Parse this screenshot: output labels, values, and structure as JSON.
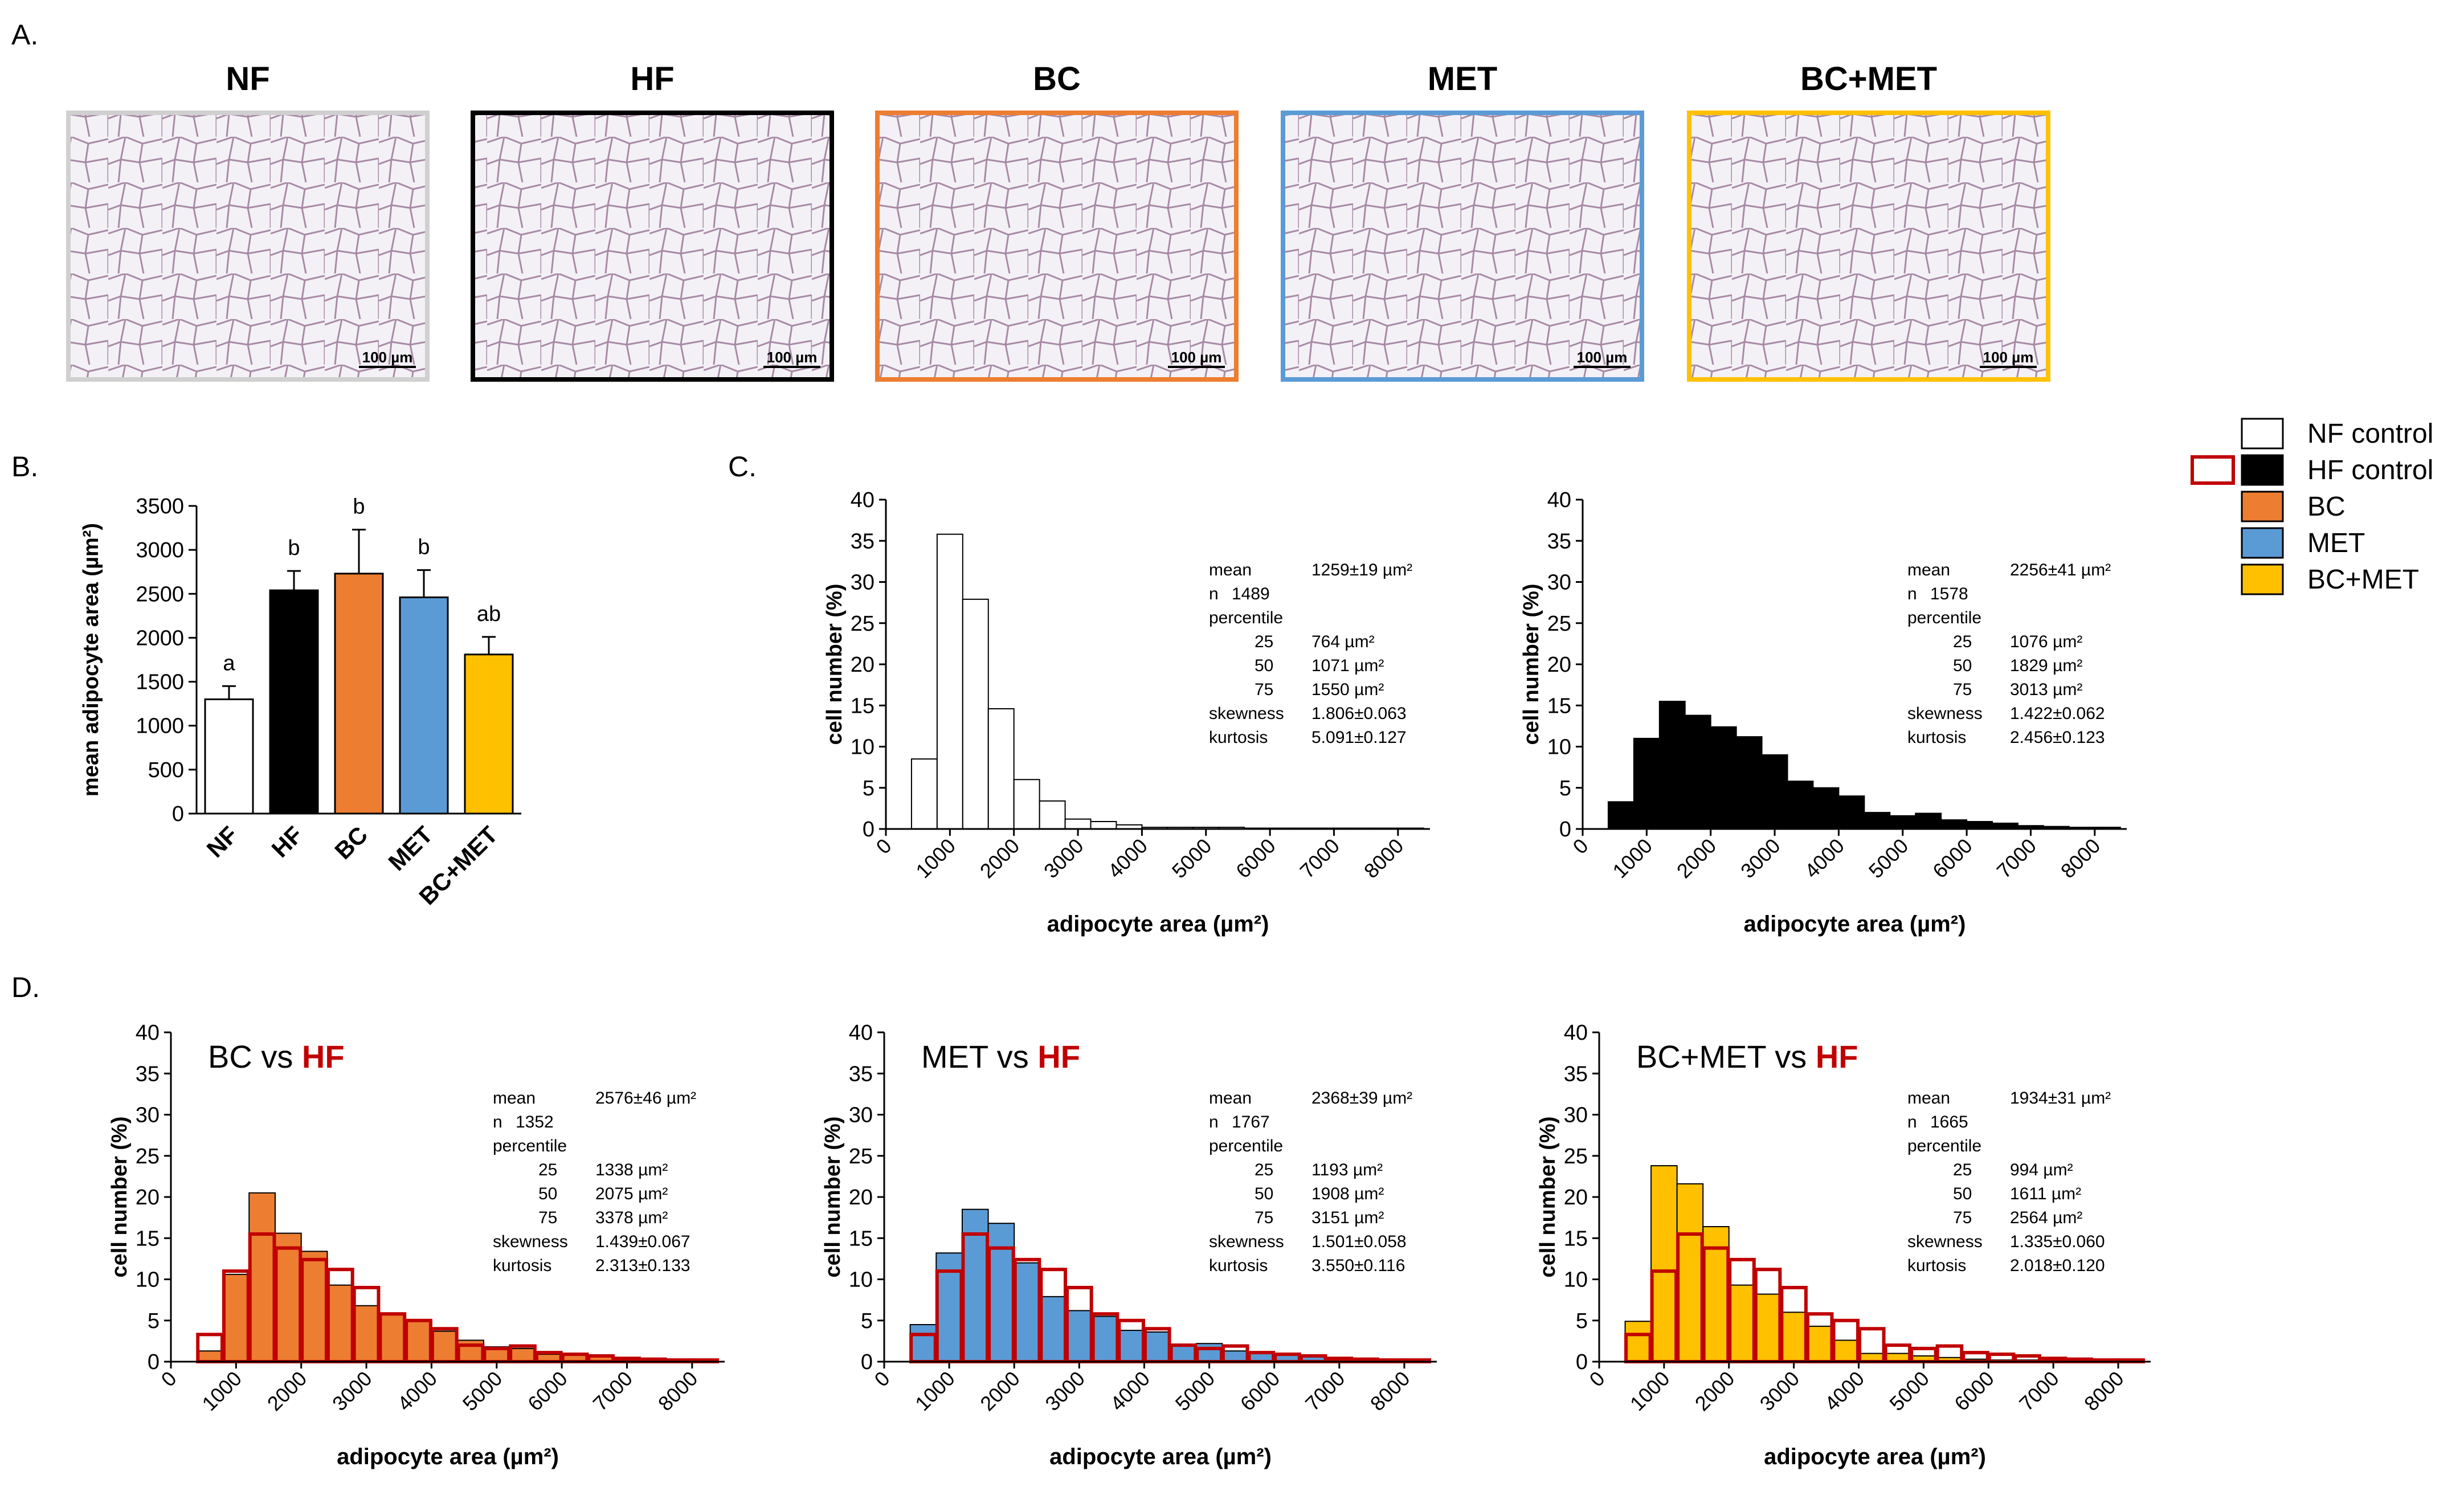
{
  "colors": {
    "NF": "#ffffff",
    "HF": "#000000",
    "BC": "#ed7d31",
    "MET": "#5b9bd5",
    "BC+MET": "#ffc000",
    "hf_outline": "#c00000",
    "image_bg": "#f3f1f6"
  },
  "panel_a": {
    "label": "A.",
    "images": [
      {
        "title": "NF",
        "scale": "100 µm",
        "border": "#d0d0d0"
      },
      {
        "title": "HF",
        "scale": "100 µm",
        "border": "#000000"
      },
      {
        "title": "BC",
        "scale": "100 µm",
        "border": "#ed7d31"
      },
      {
        "title": "MET",
        "scale": "100 µm",
        "border": "#5b9bd5"
      },
      {
        "title": "BC+MET",
        "scale": "100 µm",
        "border": "#ffc000"
      }
    ]
  },
  "legend": {
    "items": [
      {
        "label": "NF control",
        "color": "#ffffff"
      },
      {
        "label": "HF control",
        "color": "#000000"
      },
      {
        "label": "BC",
        "color": "#ed7d31"
      },
      {
        "label": "MET",
        "color": "#5b9bd5"
      },
      {
        "label": "BC+MET",
        "color": "#ffc000"
      }
    ]
  },
  "panel_labels": {
    "b": "B.",
    "c": "C.",
    "d": "D."
  },
  "chart_data": [
    {
      "id": "B",
      "type": "bar",
      "ylabel": "mean adipocyte area (µm²)",
      "ylim": [
        0,
        3500
      ],
      "yticks": [
        0,
        500,
        1000,
        1500,
        2000,
        2500,
        3000,
        3500
      ],
      "categories": [
        "NF",
        "HF",
        "BC",
        "MET",
        "BC+MET"
      ],
      "values": [
        1300,
        2540,
        2730,
        2460,
        1810
      ],
      "errors": [
        150,
        220,
        500,
        310,
        200
      ],
      "letters": [
        "a",
        "b",
        "b",
        "b",
        "ab"
      ],
      "colors": [
        "#ffffff",
        "#000000",
        "#ed7d31",
        "#5b9bd5",
        "#ffc000"
      ]
    },
    {
      "id": "C1",
      "type": "histogram",
      "xlabel": "adipocyte area (µm²)",
      "ylabel": "cell number (%)",
      "ylim": [
        0,
        40
      ],
      "xlim": [
        0,
        8500
      ],
      "xticks": [
        0,
        1000,
        2000,
        3000,
        4000,
        5000,
        6000,
        7000,
        8000
      ],
      "yticks": [
        0,
        5,
        10,
        15,
        20,
        25,
        30,
        35,
        40
      ],
      "bin_starts": [
        400,
        800,
        1200,
        1600,
        2000,
        2400,
        2800,
        3200,
        3600,
        4000,
        4400,
        4800,
        5200,
        5600,
        6000,
        6400,
        6800,
        7200,
        7600,
        8000
      ],
      "series": [
        {
          "name": "NF control",
          "values": [
            8.5,
            35.8,
            27.9,
            14.6,
            6.0,
            3.4,
            1.2,
            0.9,
            0.5,
            0.2,
            0.2,
            0.2,
            0.2,
            0.1,
            0.1,
            0.1,
            0.1,
            0.1,
            0.1,
            0.1
          ],
          "fill": "#ffffff",
          "stroke": "#000000"
        }
      ],
      "stats": {
        "mean": "1259±19 µm²",
        "n": "1489",
        "p25": "764  µm²",
        "p50": "1071 µm²",
        "p75": "1550 µm²",
        "skewness": "1.806±0.063",
        "kurtosis": "5.091±0.127"
      }
    },
    {
      "id": "C2",
      "type": "histogram",
      "xlabel": "adipocyte area (µm²)",
      "ylabel": "cell number (%)",
      "ylim": [
        0,
        40
      ],
      "xlim": [
        0,
        8500
      ],
      "xticks": [
        0,
        1000,
        2000,
        3000,
        4000,
        5000,
        6000,
        7000,
        8000
      ],
      "yticks": [
        0,
        5,
        10,
        15,
        20,
        25,
        30,
        35,
        40
      ],
      "bin_starts": [
        400,
        800,
        1200,
        1600,
        2000,
        2400,
        2800,
        3200,
        3600,
        4000,
        4400,
        4800,
        5200,
        5600,
        6000,
        6400,
        6800,
        7200,
        7600,
        8000
      ],
      "series": [
        {
          "name": "HF control",
          "values": [
            3.3,
            11.0,
            15.5,
            13.8,
            12.4,
            11.2,
            9.0,
            5.8,
            5.0,
            4.0,
            2.0,
            1.6,
            1.9,
            1.1,
            0.9,
            0.7,
            0.4,
            0.3,
            0.2,
            0.2
          ],
          "fill": "#000000",
          "stroke": "#000000"
        }
      ],
      "stats": {
        "mean": "2256±41 µm²",
        "n": "1578",
        "p25": "1076  µm²",
        "p50": "1829 µm²",
        "p75": "3013 µm²",
        "skewness": "1.422±0.062",
        "kurtosis": "2.456±0.123"
      }
    },
    {
      "id": "D1",
      "type": "histogram",
      "title_prefix": "BC vs ",
      "title_hf": "HF",
      "xlabel": "adipocyte area (µm²)",
      "ylabel": "cell number (%)",
      "ylim": [
        0,
        40
      ],
      "xlim": [
        0,
        8500
      ],
      "xticks": [
        0,
        1000,
        2000,
        3000,
        4000,
        5000,
        6000,
        7000,
        8000
      ],
      "yticks": [
        0,
        5,
        10,
        15,
        20,
        25,
        30,
        35,
        40
      ],
      "bin_starts": [
        400,
        800,
        1200,
        1600,
        2000,
        2400,
        2800,
        3200,
        3600,
        4000,
        4400,
        4800,
        5200,
        5600,
        6000,
        6400,
        6800,
        7200,
        7600,
        8000
      ],
      "series": [
        {
          "name": "BC",
          "values": [
            1.3,
            10.6,
            20.5,
            15.6,
            13.4,
            9.3,
            6.8,
            5.8,
            4.9,
            3.7,
            2.6,
            1.8,
            1.6,
            0.9,
            0.8,
            0.6,
            0.4,
            0.3,
            0.2,
            0.2
          ],
          "fill": "#ed7d31",
          "stroke": "#000000"
        },
        {
          "name": "HF control",
          "values": [
            3.3,
            11.0,
            15.5,
            13.8,
            12.4,
            11.2,
            9.0,
            5.8,
            5.0,
            4.0,
            2.0,
            1.6,
            1.9,
            1.1,
            0.9,
            0.7,
            0.4,
            0.3,
            0.2,
            0.2
          ],
          "outline": "#c00000"
        }
      ],
      "stats": {
        "mean": "2576±46 µm²",
        "n": "1352",
        "p25": "1338 µm²",
        "p50": "2075 µm²",
        "p75": "3378 µm²",
        "skewness": "1.439±0.067",
        "kurtosis": "2.313±0.133"
      }
    },
    {
      "id": "D2",
      "type": "histogram",
      "title_prefix": "MET vs ",
      "title_hf": "HF",
      "xlabel": "adipocyte area (µm²)",
      "ylabel": "cell number (%)",
      "ylim": [
        0,
        40
      ],
      "xlim": [
        0,
        8500
      ],
      "xticks": [
        0,
        1000,
        2000,
        3000,
        4000,
        5000,
        6000,
        7000,
        8000
      ],
      "yticks": [
        0,
        5,
        10,
        15,
        20,
        25,
        30,
        35,
        40
      ],
      "bin_starts": [
        400,
        800,
        1200,
        1600,
        2000,
        2400,
        2800,
        3200,
        3600,
        4000,
        4400,
        4800,
        5200,
        5600,
        6000,
        6400,
        6800,
        7200,
        7600,
        8000
      ],
      "series": [
        {
          "name": "MET",
          "values": [
            4.5,
            13.2,
            18.5,
            16.8,
            12.0,
            7.9,
            6.2,
            5.5,
            3.8,
            3.6,
            2.0,
            2.2,
            1.3,
            1.0,
            0.8,
            0.6,
            0.5,
            0.3,
            0.2,
            0.2
          ],
          "fill": "#5b9bd5",
          "stroke": "#000000"
        },
        {
          "name": "HF control",
          "values": [
            3.3,
            11.0,
            15.5,
            13.8,
            12.4,
            11.2,
            9.0,
            5.8,
            5.0,
            4.0,
            2.0,
            1.6,
            1.9,
            1.1,
            0.9,
            0.7,
            0.4,
            0.3,
            0.2,
            0.2
          ],
          "outline": "#c00000"
        }
      ],
      "stats": {
        "mean": "2368±39 µm²",
        "n": "1767",
        "p25": "1193  µm²",
        "p50": "1908 µm²",
        "p75": "3151 µm²",
        "skewness": "1.501±0.058",
        "kurtosis": "3.550±0.116"
      }
    },
    {
      "id": "D3",
      "type": "histogram",
      "title_prefix": "BC+MET vs ",
      "title_hf": "HF",
      "xlabel": "adipocyte area (µm²)",
      "ylabel": "cell number (%)",
      "ylim": [
        0,
        40
      ],
      "xlim": [
        0,
        8500
      ],
      "xticks": [
        0,
        1000,
        2000,
        3000,
        4000,
        5000,
        6000,
        7000,
        8000
      ],
      "yticks": [
        0,
        5,
        10,
        15,
        20,
        25,
        30,
        35,
        40
      ],
      "bin_starts": [
        400,
        800,
        1200,
        1600,
        2000,
        2400,
        2800,
        3200,
        3600,
        4000,
        4400,
        4800,
        5200,
        5600,
        6000,
        6400,
        6800,
        7200,
        7600,
        8000
      ],
      "series": [
        {
          "name": "BC+MET",
          "values": [
            4.9,
            23.8,
            21.6,
            16.4,
            9.3,
            8.2,
            6.0,
            4.3,
            2.6,
            1.0,
            1.0,
            0.7,
            0.5,
            0.3,
            0.2,
            0.2,
            0.1,
            0.1,
            0.1,
            0.1
          ],
          "fill": "#ffc000",
          "stroke": "#000000"
        },
        {
          "name": "HF control",
          "values": [
            3.3,
            11.0,
            15.5,
            13.8,
            12.4,
            11.2,
            9.0,
            5.8,
            5.0,
            4.0,
            2.0,
            1.6,
            1.9,
            1.1,
            0.9,
            0.7,
            0.4,
            0.3,
            0.2,
            0.2
          ],
          "outline": "#c00000"
        }
      ],
      "stats": {
        "mean": "1934±31 µm²",
        "n": "1665",
        "p25": "994  µm²",
        "p50": "1611 µm²",
        "p75": "2564 µm²",
        "skewness": "1.335±0.060",
        "kurtosis": "2.018±0.120"
      }
    }
  ],
  "stat_labels": {
    "mean": "mean",
    "n": "n",
    "percentile": "percentile",
    "p25": "25",
    "p50": "50",
    "p75": "75",
    "skewness": "skewness",
    "kurtosis": "kurtosis"
  }
}
